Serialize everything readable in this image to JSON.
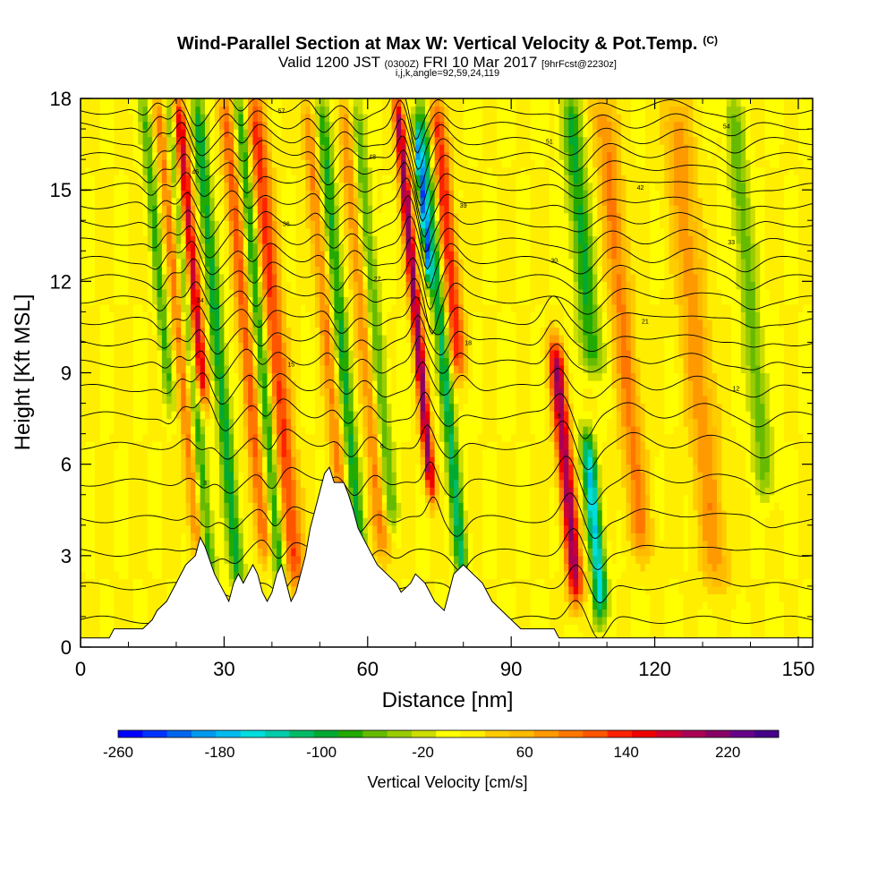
{
  "header": {
    "title": "Wind-Parallel Section at Max W: Vertical Velocity & Pot.Temp.",
    "copyright": "(C)",
    "valid_prefix": "Valid 1200 JST",
    "valid_utc": "(0300Z)",
    "valid_date": "FRI 10 Mar 2017",
    "forecast": "[9hrFcst@2230z]",
    "indices": "i,j,k,angle=92,59,24,119"
  },
  "chart_data": {
    "type": "heatmap",
    "xlabel": "Distance [nm]",
    "ylabel": "Height [Kft MSL]",
    "xlim": [
      0,
      153
    ],
    "ylim": [
      0,
      18
    ],
    "x_ticks": [
      "0",
      "30",
      "60",
      "90",
      "120",
      "150"
    ],
    "y_ticks": [
      "0",
      "3",
      "6",
      "9",
      "12",
      "15",
      "18"
    ],
    "x_tick_values": [
      0,
      30,
      60,
      90,
      120,
      150
    ],
    "y_tick_values": [
      0,
      3,
      6,
      9,
      12,
      15,
      18
    ],
    "background_value": 10,
    "updrafts": [
      {
        "x": 25.5,
        "w": 1.6,
        "v": 110,
        "base": 3,
        "top": 18
      },
      {
        "x": 29,
        "w": 1.4,
        "v": 180,
        "base": 8,
        "top": 18
      },
      {
        "x": 39,
        "w": 1.6,
        "v": 100,
        "base": 3,
        "top": 18
      },
      {
        "x": 45,
        "w": 2.2,
        "v": 120,
        "base": 2,
        "top": 18
      },
      {
        "x": 56,
        "w": 1.5,
        "v": 80,
        "base": 3,
        "top": 18
      },
      {
        "x": 64,
        "w": 1.8,
        "v": 90,
        "base": 3,
        "top": 18
      },
      {
        "x": 75,
        "w": 1.1,
        "v": 200,
        "base": 5,
        "top": 18
      },
      {
        "x": 83,
        "w": 1.8,
        "v": 130,
        "base": 9,
        "top": 18
      },
      {
        "x": 103.5,
        "w": 1.6,
        "v": 190,
        "base": 1.5,
        "top": 10
      },
      {
        "x": 118,
        "w": 2.5,
        "v": 80,
        "base": 3,
        "top": 18
      },
      {
        "x": 133,
        "w": 3,
        "v": 70,
        "base": 2,
        "top": 18
      }
    ],
    "downdrafts": [
      {
        "x": 22,
        "w": 1.2,
        "v": -80,
        "base": 8,
        "top": 18
      },
      {
        "x": 27,
        "w": 1.5,
        "v": -120,
        "base": 2,
        "top": 18
      },
      {
        "x": 33,
        "w": 1.5,
        "v": -110,
        "base": 2,
        "top": 18
      },
      {
        "x": 42,
        "w": 1.4,
        "v": -110,
        "base": 2,
        "top": 18
      },
      {
        "x": 59,
        "w": 1.5,
        "v": -100,
        "base": 2,
        "top": 18
      },
      {
        "x": 66,
        "w": 1.7,
        "v": -90,
        "base": 4,
        "top": 18
      },
      {
        "x": 78.5,
        "w": 0.8,
        "v": -190,
        "base": 12,
        "top": 17
      },
      {
        "x": 80,
        "w": 1.4,
        "v": -120,
        "base": 2,
        "top": 18
      },
      {
        "x": 108.5,
        "w": 1.5,
        "v": -170,
        "base": 1,
        "top": 7
      },
      {
        "x": 111,
        "w": 2.2,
        "v": -100,
        "base": 9,
        "top": 18
      },
      {
        "x": 145,
        "w": 2,
        "v": -70,
        "base": 5,
        "top": 18
      }
    ],
    "terrain": [
      [
        0,
        0.3
      ],
      [
        6,
        0.3
      ],
      [
        7,
        0.6
      ],
      [
        13,
        0.6
      ],
      [
        15,
        0.9
      ],
      [
        16,
        1.2
      ],
      [
        18,
        1.5
      ],
      [
        20,
        2.1
      ],
      [
        22,
        2.7
      ],
      [
        24,
        3.0
      ],
      [
        25,
        3.6
      ],
      [
        26,
        3.3
      ],
      [
        28,
        2.4
      ],
      [
        30,
        1.8
      ],
      [
        31,
        1.5
      ],
      [
        32,
        2.1
      ],
      [
        33,
        2.4
      ],
      [
        34,
        2.1
      ],
      [
        36,
        2.7
      ],
      [
        37,
        2.4
      ],
      [
        38,
        1.8
      ],
      [
        39,
        1.5
      ],
      [
        40,
        1.8
      ],
      [
        41,
        2.4
      ],
      [
        42,
        2.7
      ],
      [
        43,
        2.1
      ],
      [
        44,
        1.5
      ],
      [
        45,
        1.8
      ],
      [
        46,
        2.4
      ],
      [
        47,
        3.0
      ],
      [
        48,
        3.9
      ],
      [
        49,
        4.5
      ],
      [
        50,
        5.1
      ],
      [
        51,
        5.7
      ],
      [
        52,
        5.9
      ],
      [
        53,
        5.4
      ],
      [
        55,
        5.4
      ],
      [
        56,
        5.0
      ],
      [
        57,
        4.5
      ],
      [
        58,
        3.9
      ],
      [
        60,
        3.3
      ],
      [
        62,
        2.7
      ],
      [
        64,
        2.4
      ],
      [
        66,
        2.1
      ],
      [
        67,
        1.8
      ],
      [
        69,
        2.1
      ],
      [
        70,
        2.4
      ],
      [
        72,
        2.1
      ],
      [
        74,
        1.5
      ],
      [
        76,
        1.2
      ],
      [
        77,
        1.8
      ],
      [
        78,
        2.4
      ],
      [
        80,
        2.7
      ],
      [
        82,
        2.4
      ],
      [
        84,
        2.1
      ],
      [
        86,
        1.5
      ],
      [
        88,
        1.2
      ],
      [
        90,
        0.9
      ],
      [
        92,
        0.6
      ],
      [
        99,
        0.6
      ],
      [
        100,
        0.3
      ],
      [
        153,
        0.3
      ]
    ],
    "theta_levels": [
      {
        "base": 0.9,
        "label": ""
      },
      {
        "base": 2.0,
        "label": ""
      },
      {
        "base": 3.1,
        "label": ""
      },
      {
        "base": 4.2,
        "label": ""
      },
      {
        "base": 5.4,
        "label": "3"
      },
      {
        "base": 6.6,
        "label": "6"
      },
      {
        "base": 7.6,
        "label": "9"
      },
      {
        "base": 8.5,
        "label": "12"
      },
      {
        "base": 9.3,
        "label": "15"
      },
      {
        "base": 10.0,
        "label": "18"
      },
      {
        "base": 10.7,
        "label": "21"
      },
      {
        "base": 11.4,
        "label": "24"
      },
      {
        "base": 12.1,
        "label": "27"
      },
      {
        "base": 12.7,
        "label": "30"
      },
      {
        "base": 13.3,
        "label": "33"
      },
      {
        "base": 13.9,
        "label": "36"
      },
      {
        "base": 14.5,
        "label": "39"
      },
      {
        "base": 15.1,
        "label": "42"
      },
      {
        "base": 15.6,
        "label": "45"
      },
      {
        "base": 16.1,
        "label": "48"
      },
      {
        "base": 16.6,
        "label": "51"
      },
      {
        "base": 17.1,
        "label": "54"
      },
      {
        "base": 17.6,
        "label": "57"
      }
    ]
  },
  "colorbar": {
    "title": "Vertical Velocity [cm/s]",
    "labels": [
      "-260",
      "-180",
      "-100",
      "-20",
      "60",
      "140",
      "220"
    ],
    "label_values": [
      -260,
      -180,
      -100,
      -20,
      60,
      140,
      220
    ],
    "range": [
      -260,
      260
    ],
    "colors": [
      "#0000ff",
      "#0033ff",
      "#0066ee",
      "#0099ee",
      "#00bbee",
      "#00dddd",
      "#00ccaa",
      "#00bb66",
      "#00aa33",
      "#22aa00",
      "#66bb00",
      "#99cc00",
      "#ccdd00",
      "#ffff00",
      "#ffee00",
      "#ffcc00",
      "#ffbb00",
      "#ff9900",
      "#ff7700",
      "#ff5500",
      "#ff2200",
      "#ee0000",
      "#cc0033",
      "#aa0055",
      "#880066",
      "#660088",
      "#440088"
    ]
  }
}
